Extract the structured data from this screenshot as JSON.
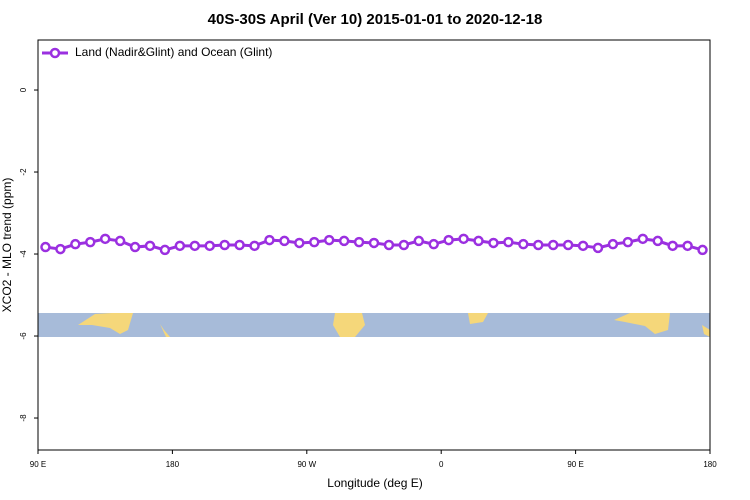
{
  "chart_data": {
    "type": "line",
    "title": "40S-30S April (Ver 10)   2015-01-01 to 2020-12-18",
    "x_label": "Longitude (deg E)",
    "y_label": "XCO2 - MLO trend (ppm)",
    "xlim": [
      90,
      540
    ],
    "xticks": [
      {
        "value": 90,
        "label": "90 E"
      },
      {
        "value": 180,
        "label": "180"
      },
      {
        "value": 270,
        "label": "90 W"
      },
      {
        "value": 360,
        "label": "0"
      },
      {
        "value": 450,
        "label": "90 E"
      },
      {
        "value": 540,
        "label": "180"
      }
    ],
    "ylim": [
      -8.78,
      1.22
    ],
    "yticks": [
      0,
      -2,
      -4,
      -6,
      -8
    ],
    "x": [
      95,
      105,
      115,
      125,
      135,
      145,
      155,
      165,
      175,
      185,
      195,
      205,
      215,
      225,
      235,
      245,
      255,
      265,
      275,
      285,
      295,
      305,
      315,
      325,
      335,
      345,
      355,
      365,
      375,
      385,
      395,
      405,
      415,
      425,
      435,
      445,
      455,
      465,
      475,
      485,
      495,
      505,
      515,
      525,
      535
    ],
    "series": [
      {
        "name": "Land (Nadir&Glint) and Ocean (Glint)",
        "color": "#9b30e0",
        "values": [
          -3.83,
          -3.88,
          -3.76,
          -3.71,
          -3.63,
          -3.68,
          -3.83,
          -3.8,
          -3.9,
          -3.8,
          -3.8,
          -3.8,
          -3.78,
          -3.78,
          -3.8,
          -3.66,
          -3.68,
          -3.73,
          -3.71,
          -3.66,
          -3.68,
          -3.71,
          -3.73,
          -3.78,
          -3.78,
          -3.68,
          -3.76,
          -3.66,
          -3.63,
          -3.68,
          -3.73,
          -3.71,
          -3.76,
          -3.78,
          -3.78,
          -3.78,
          -3.8,
          -3.85,
          -3.76,
          -3.71,
          -3.63,
          -3.68,
          -3.8,
          -3.8,
          -3.9
        ]
      }
    ],
    "legend": "top-left"
  }
}
